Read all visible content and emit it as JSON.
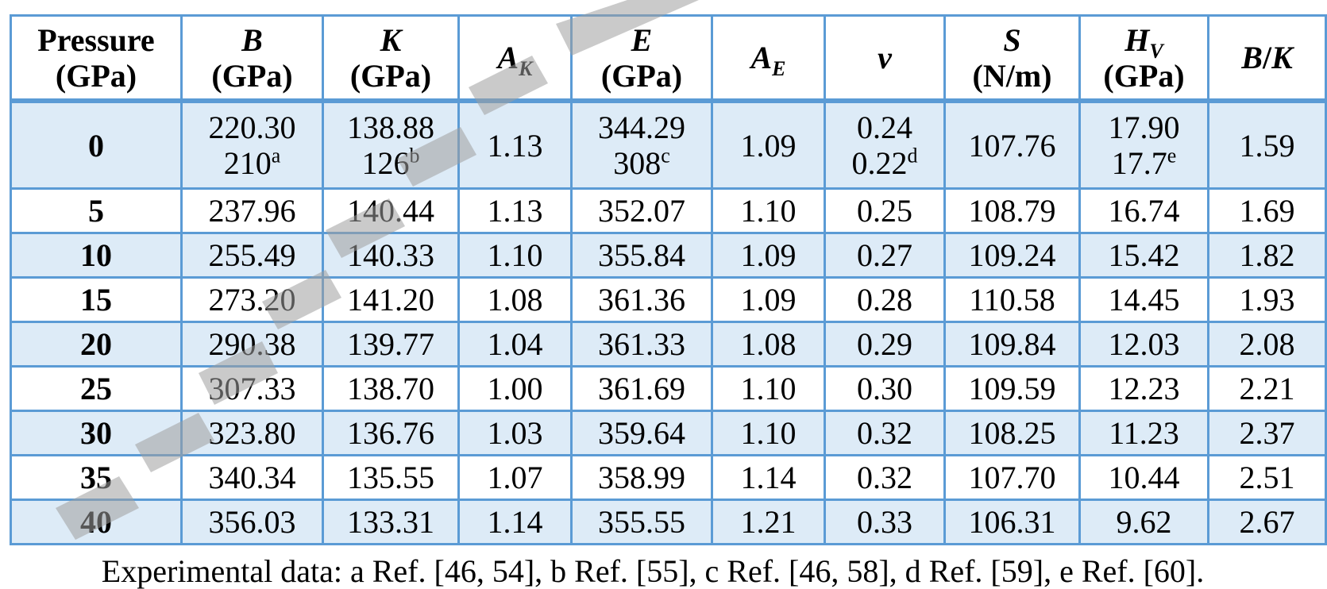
{
  "table": {
    "headers": {
      "pressure": {
        "line1": "Pressure",
        "line2": "(GPa)"
      },
      "b": {
        "symbol": "B",
        "unit": "(GPa)"
      },
      "k": {
        "symbol": "K",
        "unit": "(GPa)"
      },
      "ak": {
        "symbol": "A",
        "sub": "K"
      },
      "e": {
        "symbol": "E",
        "unit": "(GPa)"
      },
      "ae": {
        "symbol": "A",
        "sub": "E"
      },
      "v": {
        "symbol": "v"
      },
      "s": {
        "symbol": "S",
        "unit": "(N/m)"
      },
      "hv": {
        "symbol": "H",
        "sub": "V",
        "unit": "(GPa)"
      },
      "bk": {
        "symbol_b": "B",
        "slash": "/",
        "symbol_k": "K"
      }
    },
    "first_row": {
      "pressure": "0",
      "b": {
        "value": "220.30",
        "ref_value": "210",
        "ref": "a"
      },
      "k": {
        "value": "138.88",
        "ref_value": "126",
        "ref": "b"
      },
      "ak": "1.13",
      "e": {
        "value": "344.29",
        "ref_value": "308",
        "ref": "c"
      },
      "ae": "1.09",
      "v": {
        "value": "0.24",
        "ref_value": "0.22",
        "ref": "d"
      },
      "s": "107.76",
      "hv": {
        "value": "17.90",
        "ref_value": "17.7",
        "ref": "e"
      },
      "bk": "1.59"
    },
    "rows": [
      {
        "pressure": "5",
        "b": "237.96",
        "k": "140.44",
        "ak": "1.13",
        "e": "352.07",
        "ae": "1.10",
        "v": "0.25",
        "s": "108.79",
        "hv": "16.74",
        "bk": "1.69"
      },
      {
        "pressure": "10",
        "b": "255.49",
        "k": "140.33",
        "ak": "1.10",
        "e": "355.84",
        "ae": "1.09",
        "v": "0.27",
        "s": "109.24",
        "hv": "15.42",
        "bk": "1.82"
      },
      {
        "pressure": "15",
        "b": "273.20",
        "k": "141.20",
        "ak": "1.08",
        "e": "361.36",
        "ae": "1.09",
        "v": "0.28",
        "s": "110.58",
        "hv": "14.45",
        "bk": "1.93"
      },
      {
        "pressure": "20",
        "b": "290.38",
        "k": "139.77",
        "ak": "1.04",
        "e": "361.33",
        "ae": "1.08",
        "v": "0.29",
        "s": "109.84",
        "hv": "12.03",
        "bk": "2.08"
      },
      {
        "pressure": "25",
        "b": "307.33",
        "k": "138.70",
        "ak": "1.00",
        "e": "361.69",
        "ae": "1.10",
        "v": "0.30",
        "s": "109.59",
        "hv": "12.23",
        "bk": "2.21"
      },
      {
        "pressure": "30",
        "b": "323.80",
        "k": "136.76",
        "ak": "1.03",
        "e": "359.64",
        "ae": "1.10",
        "v": "0.32",
        "s": "108.25",
        "hv": "11.23",
        "bk": "2.37"
      },
      {
        "pressure": "35",
        "b": "340.34",
        "k": "135.55",
        "ak": "1.07",
        "e": "358.99",
        "ae": "1.14",
        "v": "0.32",
        "s": "107.70",
        "hv": "10.44",
        "bk": "2.51"
      },
      {
        "pressure": "40",
        "b": "356.03",
        "k": "133.31",
        "ak": "1.14",
        "e": "355.55",
        "ae": "1.21",
        "v": "0.33",
        "s": "106.31",
        "hv": "9.62",
        "bk": "2.67"
      }
    ]
  },
  "footnote": "Experimental data: a Ref. [46, 54], b Ref. [55], c Ref. [46, 58], d Ref. [59], e Ref. [60].",
  "colors": {
    "border": "#5b9bd5",
    "shade": "#ddebf7",
    "watermark": "#9e9e9e"
  }
}
